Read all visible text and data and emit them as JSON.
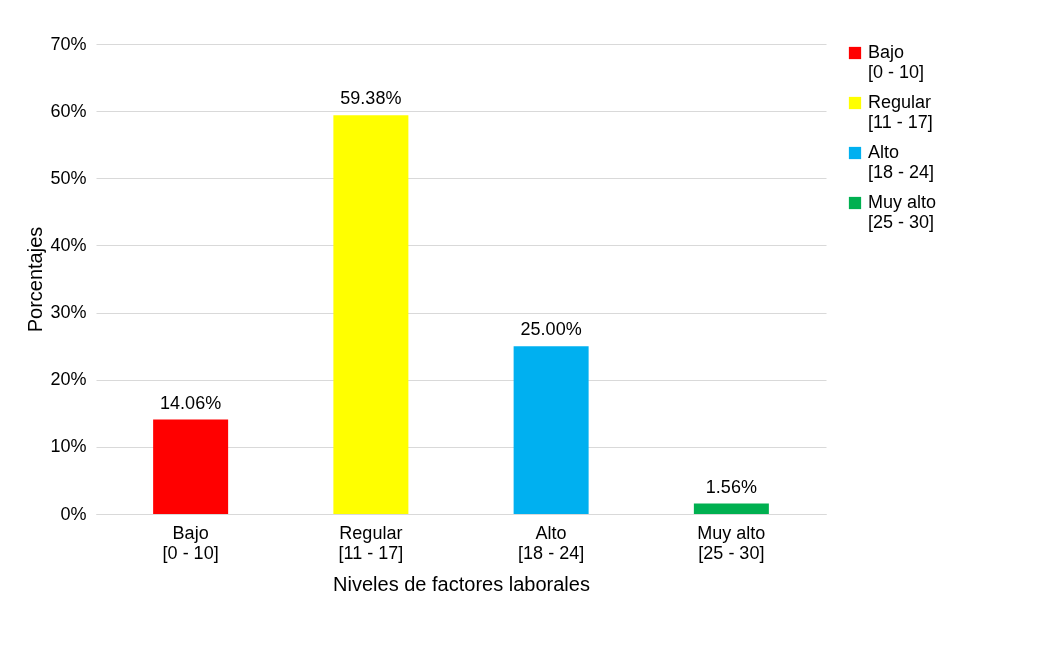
{
  "chart_data": {
    "type": "bar",
    "xlabel": "Niveles de factores laborales",
    "ylabel": "Porcentajes",
    "categories": [
      "Bajo\n[0 - 10]",
      "Regular\n[11 - 17]",
      "Alto\n[18 - 24]",
      "Muy alto\n[25 - 30]"
    ],
    "series": [
      {
        "name": "Bajo\n[0 - 10]",
        "color": "#ff0000",
        "values": [
          14.06,
          null,
          null,
          null
        ],
        "value_labels": [
          "14.06%",
          null,
          null,
          null
        ]
      },
      {
        "name": "Regular\n[11 - 17]",
        "color": "#ffff00",
        "values": [
          null,
          59.38,
          null,
          null
        ],
        "value_labels": [
          null,
          "59.38%",
          null,
          null
        ]
      },
      {
        "name": "Alto\n[18 - 24]",
        "color": "#00b0f0",
        "values": [
          null,
          null,
          25.0,
          null
        ],
        "value_labels": [
          null,
          null,
          "25.00%",
          null
        ]
      },
      {
        "name": "Muy alto\n[25 - 30]",
        "color": "#00b050",
        "values": [
          null,
          null,
          null,
          1.56
        ],
        "value_labels": [
          null,
          null,
          null,
          "1.56%"
        ]
      }
    ],
    "ylim": [
      0,
      70
    ],
    "yticks": [
      {
        "value": 0,
        "label": "0%"
      },
      {
        "value": 10,
        "label": "10%"
      },
      {
        "value": 20,
        "label": "20%"
      },
      {
        "value": 30,
        "label": "30%"
      },
      {
        "value": 40,
        "label": "40%"
      },
      {
        "value": 50,
        "label": "50%"
      },
      {
        "value": 60,
        "label": "60%"
      },
      {
        "value": 70,
        "label": "70%"
      }
    ],
    "grid": "y",
    "legend": "right"
  }
}
